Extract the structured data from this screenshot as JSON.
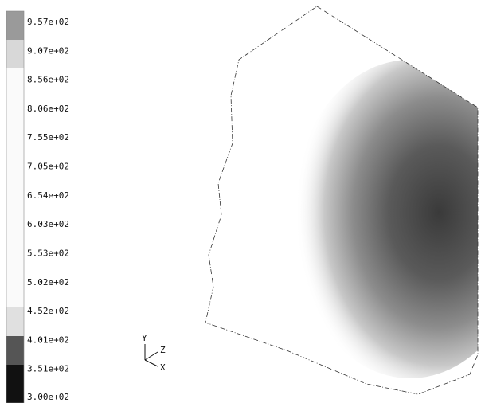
{
  "legend": {
    "labels": [
      "9.57e+02",
      "9.07e+02",
      "8.56e+02",
      "8.06e+02",
      "7.55e+02",
      "7.05e+02",
      "6.54e+02",
      "6.03e+02",
      "5.53e+02",
      "5.02e+02",
      "4.52e+02",
      "4.01e+02",
      "3.51e+02",
      "3.00e+02"
    ]
  },
  "axes": {
    "y": "Y",
    "z": "Z",
    "x": "X"
  }
}
